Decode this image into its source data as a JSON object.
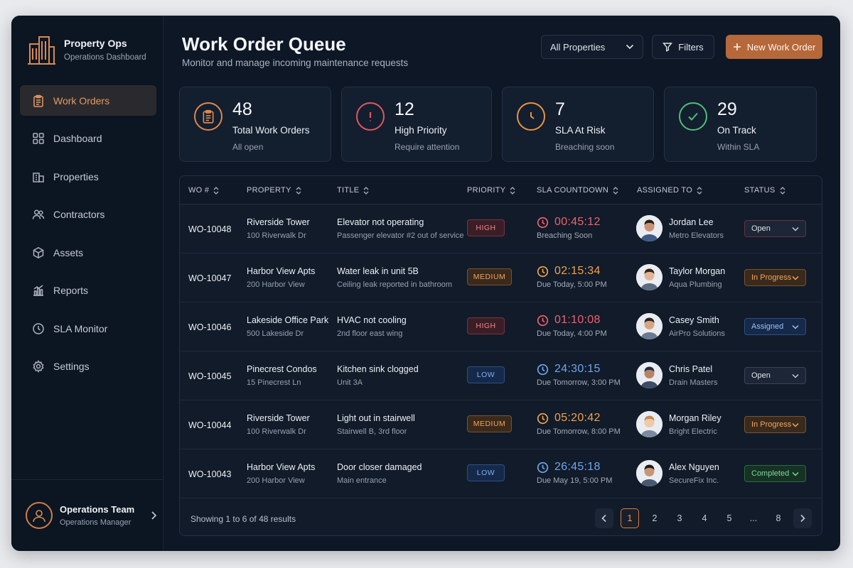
{
  "brand": {
    "name": "Property Ops",
    "subtitle": "Operations Dashboard"
  },
  "nav": [
    {
      "label": "Work Orders",
      "icon": "clipboard-icon",
      "active": true
    },
    {
      "label": "Dashboard",
      "icon": "grid-icon"
    },
    {
      "label": "Properties",
      "icon": "building-icon"
    },
    {
      "label": "Contractors",
      "icon": "users-icon"
    },
    {
      "label": "Assets",
      "icon": "cube-icon"
    },
    {
      "label": "Reports",
      "icon": "bar-chart-icon"
    },
    {
      "label": "SLA Monitor",
      "icon": "clock-icon"
    },
    {
      "label": "Settings",
      "icon": "gear-icon"
    }
  ],
  "user": {
    "name": "Operations Team",
    "role": "Operations Manager"
  },
  "header": {
    "title": "Work Order Queue",
    "subtitle": "Monitor and manage incoming maintenance requests",
    "property_filter": "All Properties",
    "filters_label": "Filters",
    "new_label": "New Work Order"
  },
  "stats": [
    {
      "value": "48",
      "label": "Total Work Orders",
      "sub": "All open",
      "icon": "clipboard-icon",
      "color": "#d98a52"
    },
    {
      "value": "12",
      "label": "High Priority",
      "sub": "Require attention",
      "icon": "alert-icon",
      "color": "#e0575f"
    },
    {
      "value": "7",
      "label": "SLA At Risk",
      "sub": "Breaching soon",
      "icon": "clock-icon",
      "color": "#e8953f"
    },
    {
      "value": "29",
      "label": "On Track",
      "sub": "Within SLA",
      "icon": "check-icon",
      "color": "#4fbf7a"
    }
  ],
  "columns": [
    "WO #",
    "PROPERTY",
    "TITLE",
    "PRIORITY",
    "SLA COUNTDOWN",
    "ASSIGNED TO",
    "STATUS"
  ],
  "rows": [
    {
      "wo": "WO-10048",
      "property": "Riverside Tower",
      "address": "100 Riverwalk Dr",
      "title": "Elevator not operating",
      "detail": "Passenger elevator #2 out of service",
      "priority": "HIGH",
      "sla": "00:45:12",
      "sla_note": "Breaching Soon",
      "sla_color": "#f0616a",
      "assignee": "Jordan Lee",
      "company": "Metro Elevators",
      "status": "Open",
      "status_class": "Open"
    },
    {
      "wo": "WO-10047",
      "property": "Harbor View Apts",
      "address": "200 Harbor View",
      "title": "Water leak in unit 5B",
      "detail": "Ceiling leak reported in bathroom",
      "priority": "MEDIUM",
      "sla": "02:15:34",
      "sla_note": "Due Today, 5:00 PM",
      "sla_color": "#f0a24a",
      "assignee": "Taylor Morgan",
      "company": "Aqua Plumbing",
      "status": "In Progress",
      "status_class": "InProgress"
    },
    {
      "wo": "WO-10046",
      "property": "Lakeside Office Park",
      "address": "500 Lakeside Dr",
      "title": "HVAC not cooling",
      "detail": "2nd floor east wing",
      "priority": "HIGH",
      "sla": "01:10:08",
      "sla_note": "Due Today, 4:00 PM",
      "sla_color": "#f0616a",
      "assignee": "Casey Smith",
      "company": "AirPro Solutions",
      "status": "Assigned",
      "status_class": "Assigned"
    },
    {
      "wo": "WO-10045",
      "property": "Pinecrest Condos",
      "address": "15 Pinecrest Ln",
      "title": "Kitchen sink clogged",
      "detail": "Unit 3A",
      "priority": "LOW",
      "sla": "24:30:15",
      "sla_note": "Due Tomorrow, 3:00 PM",
      "sla_color": "#6ea6ea",
      "assignee": "Chris Patel",
      "company": "Drain Masters",
      "status": "Open",
      "status_class": "Open-plain"
    },
    {
      "wo": "WO-10044",
      "property": "Riverside Tower",
      "address": "100 Riverwalk Dr",
      "title": "Light out in stairwell",
      "detail": "Stairwell B, 3rd floor",
      "priority": "MEDIUM",
      "sla": "05:20:42",
      "sla_note": "Due Tomorrow, 8:00 PM",
      "sla_color": "#f0a24a",
      "assignee": "Morgan Riley",
      "company": "Bright Electric",
      "status": "In Progress",
      "status_class": "InProgress"
    },
    {
      "wo": "WO-10043",
      "property": "Harbor View Apts",
      "address": "200 Harbor View",
      "title": "Door closer damaged",
      "detail": "Main entrance",
      "priority": "LOW",
      "sla": "26:45:18",
      "sla_note": "Due May 19, 5:00 PM",
      "sla_color": "#6ea6ea",
      "assignee": "Alex Nguyen",
      "company": "SecureFix Inc.",
      "status": "Completed",
      "status_class": "Completed"
    }
  ],
  "pagination": {
    "showing": "Showing 1 to 6 of 48 results",
    "pages": [
      "1",
      "2",
      "3",
      "4",
      "5",
      "...",
      "8"
    ],
    "current": "1"
  }
}
